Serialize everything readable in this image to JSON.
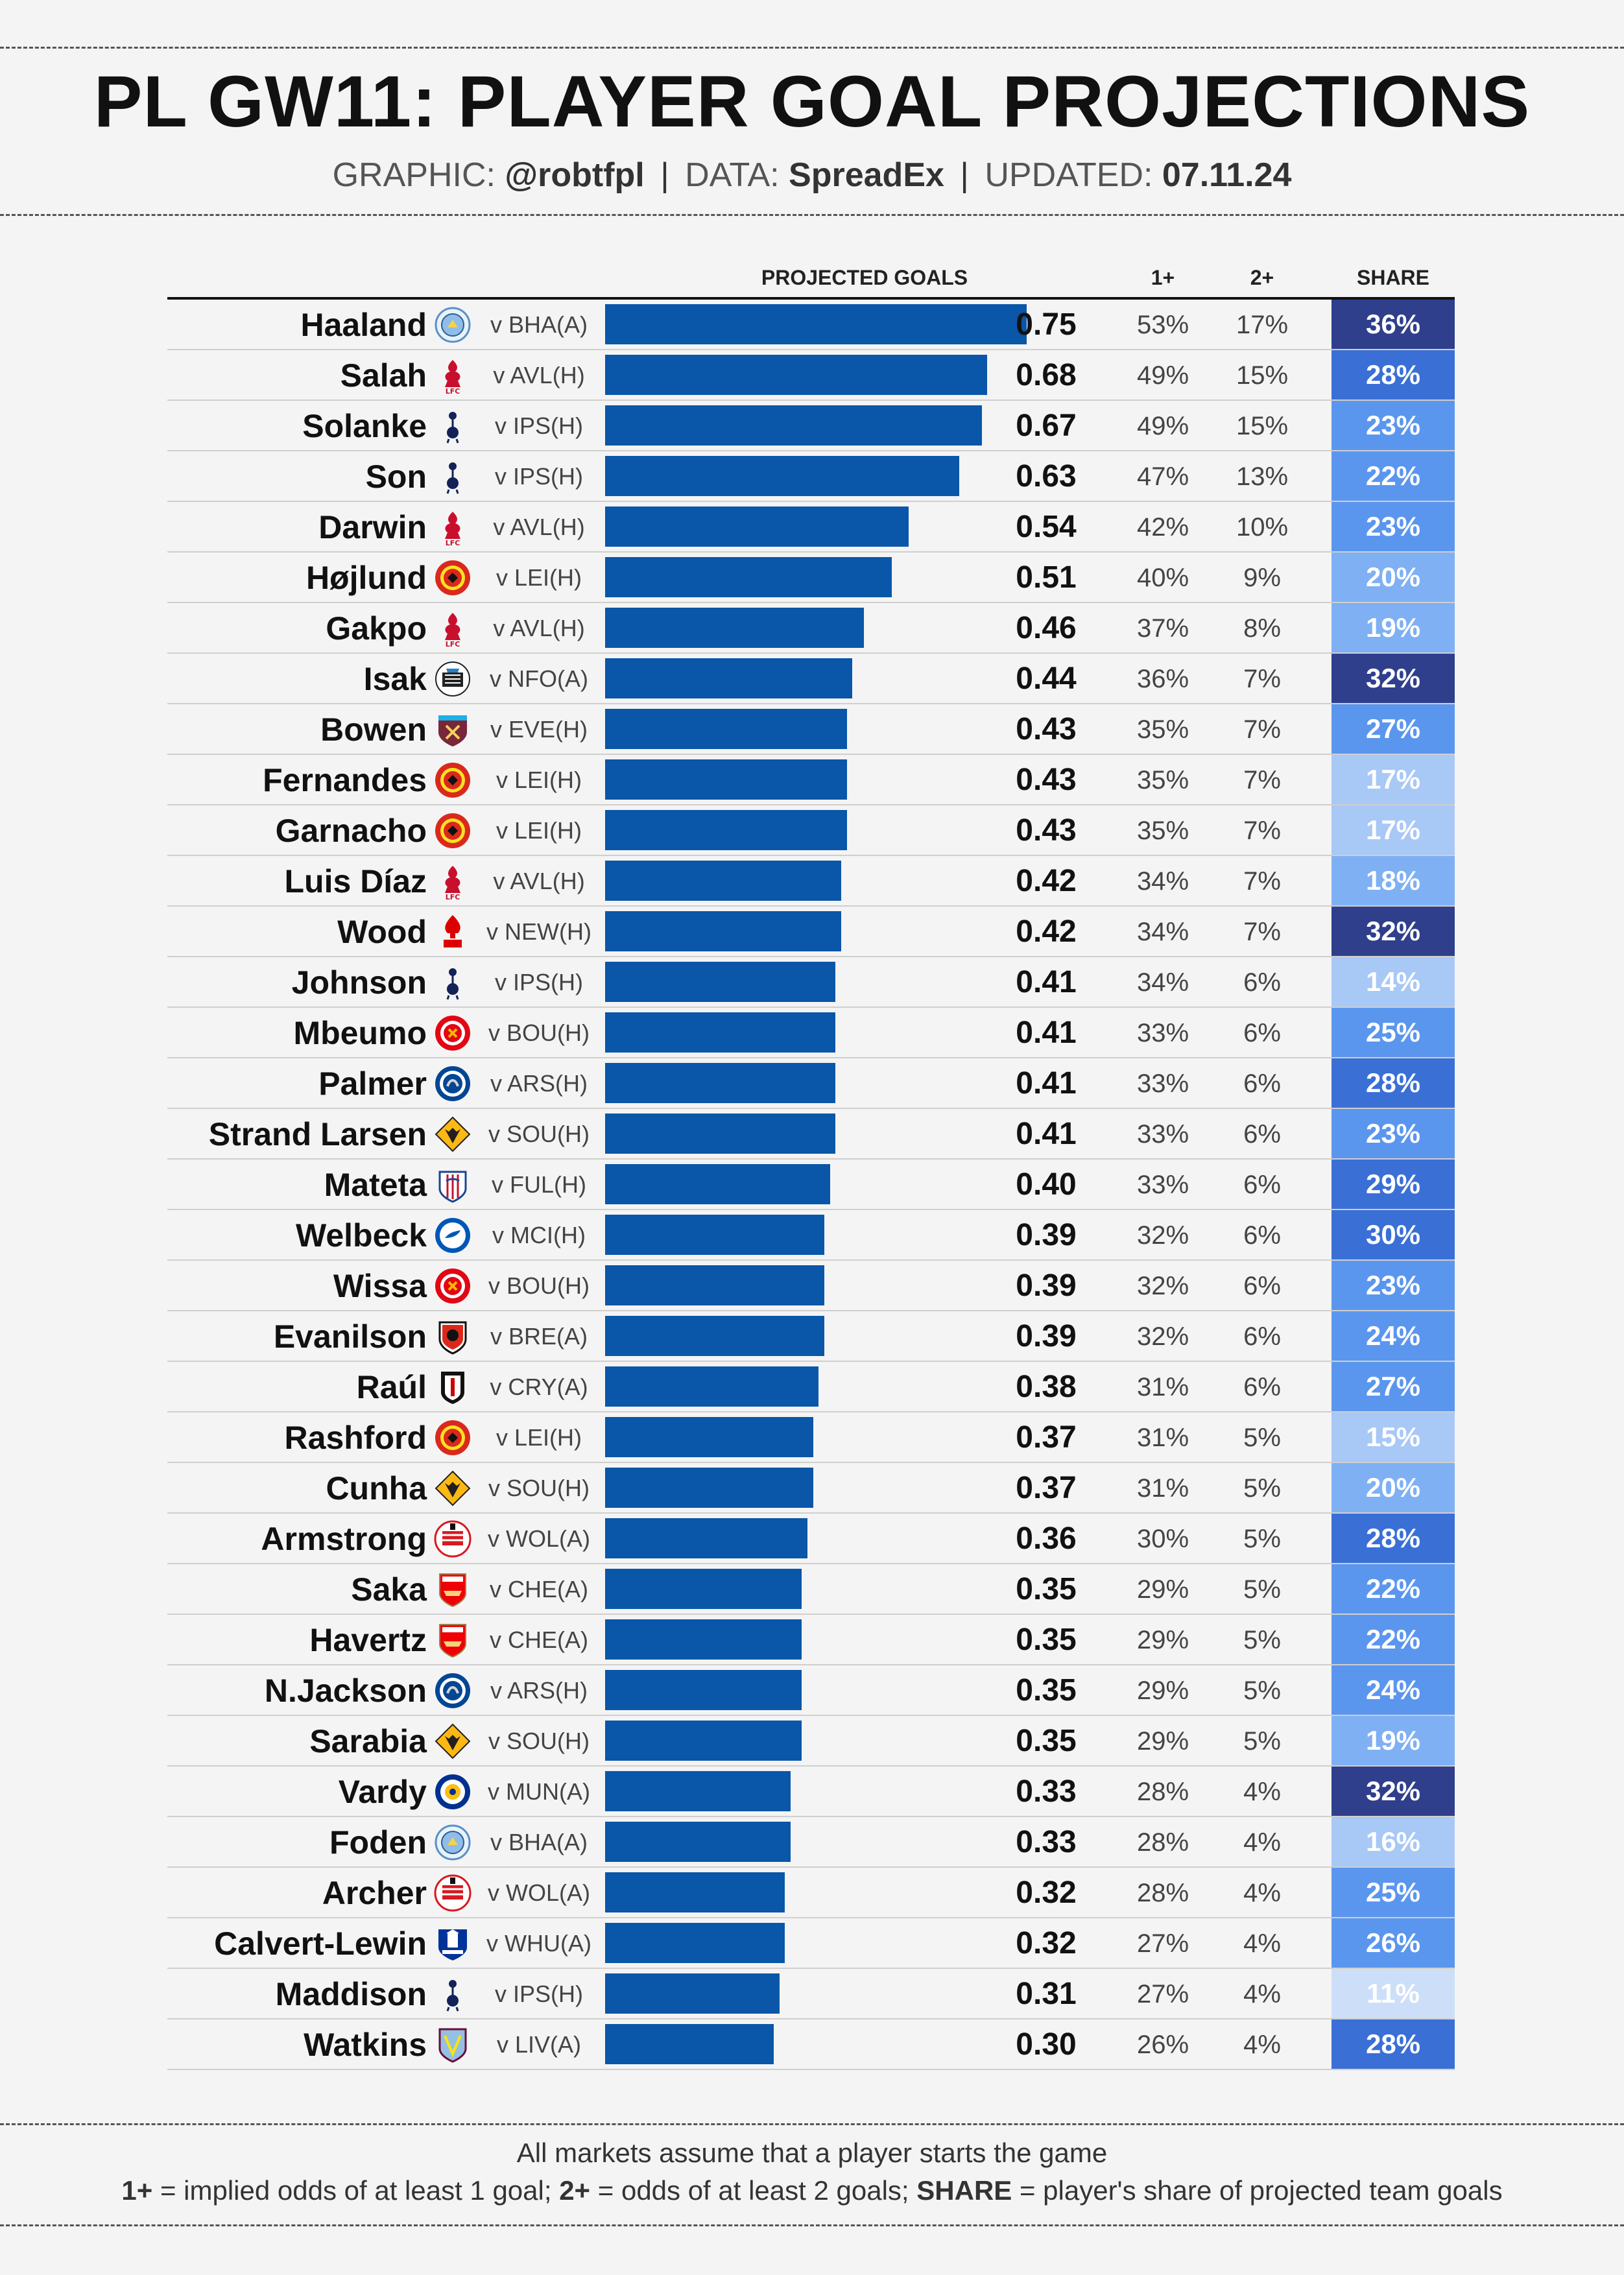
{
  "title": "PL GW11: PLAYER GOAL PROJECTIONS",
  "subtitle": {
    "graphic_label": "GRAPHIC:",
    "graphic_value": "@robtfpl",
    "data_label": "DATA:",
    "data_value": "SpreadEx",
    "updated_label": "UPDATED:",
    "updated_value": "07.11.24",
    "separator": "|"
  },
  "columns": {
    "projected": "PROJECTED GOALS",
    "one_plus": "1+",
    "two_plus": "2+",
    "share": "SHARE"
  },
  "footnotes": {
    "line1": "All markets assume that a player starts the game",
    "line2_a_bold": "1+",
    "line2_a": " = implied odds of at least 1 goal; ",
    "line2_b_bold": "2+",
    "line2_b": " = odds of at least 2 goals; ",
    "line2_c_bold": "SHARE",
    "line2_c": " = player's share of projected team goals"
  },
  "colors": {
    "bar": "#0a56a8",
    "share_scale": [
      "#cddff8",
      "#a8c8f6",
      "#7fb0f4",
      "#5b96ee",
      "#3a6fd6",
      "#2f3f8c"
    ]
  },
  "chart_data": {
    "type": "bar",
    "orientation": "horizontal",
    "xlim": [
      0,
      0.75
    ],
    "grid": false,
    "legend": "none",
    "rows": [
      {
        "player": "Haaland",
        "club": "mci",
        "fixture": "v BHA(A)",
        "goals": "0.75",
        "one_plus": "53%",
        "two_plus": "17%",
        "share": "36%"
      },
      {
        "player": "Salah",
        "club": "liv",
        "fixture": "v AVL(H)",
        "goals": "0.68",
        "one_plus": "49%",
        "two_plus": "15%",
        "share": "28%"
      },
      {
        "player": "Solanke",
        "club": "tot",
        "fixture": "v IPS(H)",
        "goals": "0.67",
        "one_plus": "49%",
        "two_plus": "15%",
        "share": "23%"
      },
      {
        "player": "Son",
        "club": "tot",
        "fixture": "v IPS(H)",
        "goals": "0.63",
        "one_plus": "47%",
        "two_plus": "13%",
        "share": "22%"
      },
      {
        "player": "Darwin",
        "club": "liv",
        "fixture": "v AVL(H)",
        "goals": "0.54",
        "one_plus": "42%",
        "two_plus": "10%",
        "share": "23%"
      },
      {
        "player": "Højlund",
        "club": "mun",
        "fixture": "v LEI(H)",
        "goals": "0.51",
        "one_plus": "40%",
        "two_plus": "9%",
        "share": "20%"
      },
      {
        "player": "Gakpo",
        "club": "liv",
        "fixture": "v AVL(H)",
        "goals": "0.46",
        "one_plus": "37%",
        "two_plus": "8%",
        "share": "19%"
      },
      {
        "player": "Isak",
        "club": "new",
        "fixture": "v NFO(A)",
        "goals": "0.44",
        "one_plus": "36%",
        "two_plus": "7%",
        "share": "32%"
      },
      {
        "player": "Bowen",
        "club": "whu",
        "fixture": "v EVE(H)",
        "goals": "0.43",
        "one_plus": "35%",
        "two_plus": "7%",
        "share": "27%"
      },
      {
        "player": "Fernandes",
        "club": "mun",
        "fixture": "v LEI(H)",
        "goals": "0.43",
        "one_plus": "35%",
        "two_plus": "7%",
        "share": "17%"
      },
      {
        "player": "Garnacho",
        "club": "mun",
        "fixture": "v LEI(H)",
        "goals": "0.43",
        "one_plus": "35%",
        "two_plus": "7%",
        "share": "17%"
      },
      {
        "player": "Luis Díaz",
        "club": "liv",
        "fixture": "v AVL(H)",
        "goals": "0.42",
        "one_plus": "34%",
        "two_plus": "7%",
        "share": "18%"
      },
      {
        "player": "Wood",
        "club": "nfo",
        "fixture": "v NEW(H)",
        "goals": "0.42",
        "one_plus": "34%",
        "two_plus": "7%",
        "share": "32%"
      },
      {
        "player": "Johnson",
        "club": "tot",
        "fixture": "v IPS(H)",
        "goals": "0.41",
        "one_plus": "34%",
        "two_plus": "6%",
        "share": "14%"
      },
      {
        "player": "Mbeumo",
        "club": "bre",
        "fixture": "v BOU(H)",
        "goals": "0.41",
        "one_plus": "33%",
        "two_plus": "6%",
        "share": "25%"
      },
      {
        "player": "Palmer",
        "club": "che",
        "fixture": "v ARS(H)",
        "goals": "0.41",
        "one_plus": "33%",
        "two_plus": "6%",
        "share": "28%"
      },
      {
        "player": "Strand Larsen",
        "club": "wol",
        "fixture": "v SOU(H)",
        "goals": "0.41",
        "one_plus": "33%",
        "two_plus": "6%",
        "share": "23%"
      },
      {
        "player": "Mateta",
        "club": "cry",
        "fixture": "v FUL(H)",
        "goals": "0.40",
        "one_plus": "33%",
        "two_plus": "6%",
        "share": "29%"
      },
      {
        "player": "Welbeck",
        "club": "bha",
        "fixture": "v MCI(H)",
        "goals": "0.39",
        "one_plus": "32%",
        "two_plus": "6%",
        "share": "30%"
      },
      {
        "player": "Wissa",
        "club": "bre",
        "fixture": "v BOU(H)",
        "goals": "0.39",
        "one_plus": "32%",
        "two_plus": "6%",
        "share": "23%"
      },
      {
        "player": "Evanilson",
        "club": "bou",
        "fixture": "v BRE(A)",
        "goals": "0.39",
        "one_plus": "32%",
        "two_plus": "6%",
        "share": "24%"
      },
      {
        "player": "Raúl",
        "club": "ful",
        "fixture": "v CRY(A)",
        "goals": "0.38",
        "one_plus": "31%",
        "two_plus": "6%",
        "share": "27%"
      },
      {
        "player": "Rashford",
        "club": "mun",
        "fixture": "v LEI(H)",
        "goals": "0.37",
        "one_plus": "31%",
        "two_plus": "5%",
        "share": "15%"
      },
      {
        "player": "Cunha",
        "club": "wol",
        "fixture": "v SOU(H)",
        "goals": "0.37",
        "one_plus": "31%",
        "two_plus": "5%",
        "share": "20%"
      },
      {
        "player": "Armstrong",
        "club": "sou",
        "fixture": "v WOL(A)",
        "goals": "0.36",
        "one_plus": "30%",
        "two_plus": "5%",
        "share": "28%"
      },
      {
        "player": "Saka",
        "club": "ars",
        "fixture": "v CHE(A)",
        "goals": "0.35",
        "one_plus": "29%",
        "two_plus": "5%",
        "share": "22%"
      },
      {
        "player": "Havertz",
        "club": "ars",
        "fixture": "v CHE(A)",
        "goals": "0.35",
        "one_plus": "29%",
        "two_plus": "5%",
        "share": "22%"
      },
      {
        "player": "N.Jackson",
        "club": "che",
        "fixture": "v ARS(H)",
        "goals": "0.35",
        "one_plus": "29%",
        "two_plus": "5%",
        "share": "24%"
      },
      {
        "player": "Sarabia",
        "club": "wol",
        "fixture": "v SOU(H)",
        "goals": "0.35",
        "one_plus": "29%",
        "two_plus": "5%",
        "share": "19%"
      },
      {
        "player": "Vardy",
        "club": "lei",
        "fixture": "v MUN(A)",
        "goals": "0.33",
        "one_plus": "28%",
        "two_plus": "4%",
        "share": "32%"
      },
      {
        "player": "Foden",
        "club": "mci",
        "fixture": "v BHA(A)",
        "goals": "0.33",
        "one_plus": "28%",
        "two_plus": "4%",
        "share": "16%"
      },
      {
        "player": "Archer",
        "club": "sou",
        "fixture": "v WOL(A)",
        "goals": "0.32",
        "one_plus": "28%",
        "two_plus": "4%",
        "share": "25%"
      },
      {
        "player": "Calvert-Lewin",
        "club": "eve",
        "fixture": "v WHU(A)",
        "goals": "0.32",
        "one_plus": "27%",
        "two_plus": "4%",
        "share": "26%"
      },
      {
        "player": "Maddison",
        "club": "tot",
        "fixture": "v IPS(H)",
        "goals": "0.31",
        "one_plus": "27%",
        "two_plus": "4%",
        "share": "11%"
      },
      {
        "player": "Watkins",
        "club": "avl",
        "fixture": "v LIV(A)",
        "goals": "0.30",
        "one_plus": "26%",
        "two_plus": "4%",
        "share": "28%"
      }
    ]
  }
}
